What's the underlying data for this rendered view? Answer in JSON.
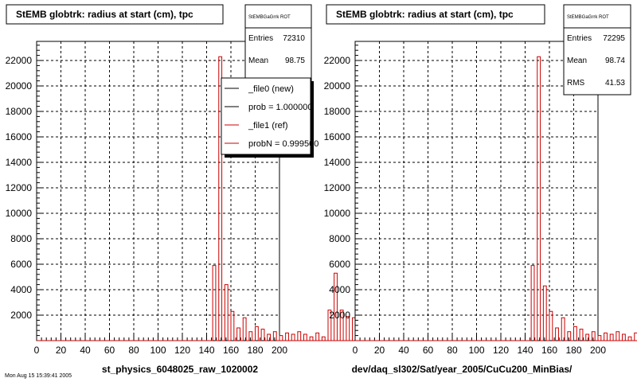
{
  "chart_data": [
    {
      "type": "histogram",
      "title": "StEMB globtrk: radius at start (cm), tpc",
      "xlabel": "st_physics_6048025_raw_1020002",
      "xlim": [
        0,
        200
      ],
      "ylim": [
        0,
        23500
      ],
      "x_ticks": [
        "0",
        "20",
        "40",
        "60",
        "80",
        "100",
        "120",
        "140",
        "160",
        "180",
        "200"
      ],
      "y_ticks": [
        "2000",
        "4000",
        "6000",
        "8000",
        "10000",
        "12000",
        "14000",
        "16000",
        "18000",
        "20000",
        "22000"
      ],
      "grid": true,
      "bin_width": 5,
      "bin_values": [
        0,
        0,
        0,
        0,
        0,
        0,
        0,
        0,
        0,
        0,
        0,
        0,
        0,
        0,
        0,
        0,
        0,
        0,
        0,
        0,
        0,
        0,
        0,
        0,
        0,
        0,
        0,
        0,
        0,
        0,
        0,
        0,
        0,
        0,
        0,
        0,
        0,
        0,
        0,
        0,
        0,
        0,
        0,
        0,
        0,
        0,
        0,
        0,
        0,
        0,
        0,
        0,
        0,
        0,
        0,
        0,
        0,
        0,
        5900,
        0,
        22300,
        0,
        4400,
        0,
        2300,
        0,
        1000,
        0,
        1800,
        0,
        700,
        0,
        1100,
        0,
        900,
        0,
        500,
        0,
        700,
        0,
        400,
        0,
        600,
        0,
        500,
        0,
        700,
        0,
        500,
        0,
        300,
        0,
        600,
        0,
        300,
        0,
        2400,
        0,
        5300,
        0,
        2400,
        0,
        1900,
        0,
        1800,
        0,
        1600,
        0,
        1500,
        0,
        1300,
        0,
        1300,
        0,
        1200,
        0,
        1100,
        0,
        800,
        0,
        500,
        0,
        300,
        0,
        0,
        0,
        0
      ],
      "series": [
        {
          "name": "_file0 (new)",
          "color": "#000000"
        },
        {
          "name": "_file1 (ref)",
          "color": "#cc0000"
        }
      ],
      "stats": {
        "header": "StEMBGaGrrk ROT",
        "entries_label": "Entries",
        "entries": "72310",
        "mean_label": "Mean",
        "mean": "98.75"
      },
      "legend": {
        "placement": "top-right",
        "items": [
          "_file0 (new)",
          "prob = 1.000000",
          "_file1 (ref)",
          "probN = 0.999500"
        ]
      }
    },
    {
      "type": "histogram",
      "title": "StEMB globtrk: radius at start (cm), tpc",
      "xlabel": "dev/daq_sl302/Sat/year_2005/CuCu200_MinBias/",
      "xlim": [
        0,
        200
      ],
      "ylim": [
        0,
        23500
      ],
      "x_ticks": [
        "0",
        "20",
        "40",
        "60",
        "80",
        "100",
        "120",
        "140",
        "160",
        "180",
        "200"
      ],
      "y_ticks": [
        "2000",
        "4000",
        "6000",
        "8000",
        "10000",
        "12000",
        "14000",
        "16000",
        "18000",
        "20000",
        "22000"
      ],
      "grid": true,
      "bin_width": 5,
      "bin_values": [
        0,
        0,
        0,
        0,
        0,
        0,
        0,
        0,
        0,
        0,
        0,
        0,
        0,
        0,
        0,
        0,
        0,
        0,
        0,
        0,
        0,
        0,
        0,
        0,
        0,
        0,
        0,
        0,
        0,
        0,
        0,
        0,
        0,
        0,
        0,
        0,
        0,
        0,
        0,
        0,
        0,
        0,
        0,
        0,
        0,
        0,
        0,
        0,
        0,
        0,
        0,
        0,
        0,
        0,
        0,
        0,
        0,
        0,
        5900,
        0,
        22300,
        0,
        4300,
        0,
        2300,
        0,
        1000,
        0,
        1800,
        0,
        700,
        0,
        1100,
        0,
        900,
        0,
        500,
        0,
        700,
        0,
        400,
        0,
        600,
        0,
        500,
        0,
        700,
        0,
        500,
        0,
        300,
        0,
        600,
        0,
        300,
        0,
        2400,
        0,
        5300,
        0,
        2400,
        0,
        1900,
        0,
        1800,
        0,
        1600,
        0,
        1500,
        0,
        1300,
        0,
        1300,
        0,
        1200,
        0,
        1100,
        0,
        800,
        0,
        500,
        0,
        300,
        0,
        0,
        0,
        0
      ],
      "series": [
        {
          "name": "_file1 (ref)",
          "color": "#cc0000"
        }
      ],
      "stats": {
        "header": "StEMBGaGrrk ROT",
        "entries_label": "Entries",
        "entries": "72295",
        "mean_label": "Mean",
        "mean": "98.74",
        "rms_label": "RMS",
        "rms": "41.53"
      }
    }
  ],
  "footer_text": "Mon Aug 15 15:39:41 2005"
}
